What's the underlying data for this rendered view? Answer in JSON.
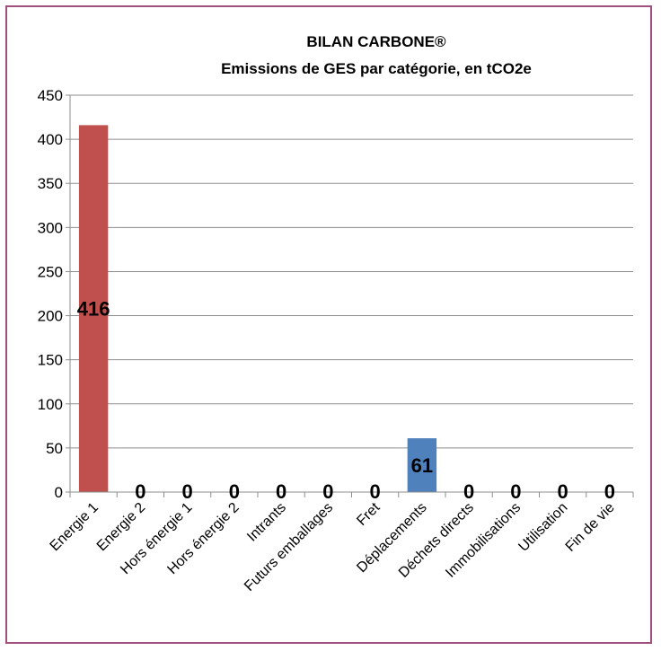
{
  "chart_data": {
    "type": "bar",
    "title_line1": "BILAN CARBONE®",
    "title_line2": "Emissions de GES par catégorie, en tCO2e",
    "xlabel": "",
    "ylabel": "",
    "ylim": [
      0,
      450
    ],
    "yticks": [
      "0",
      "50",
      "100",
      "150",
      "200",
      "250",
      "300",
      "350",
      "400",
      "450"
    ],
    "categories": [
      "Energie 1",
      "Energie 2",
      "Hors énergie 1",
      "Hors énergie 2",
      "Intrants",
      "Futurs emballages",
      "Fret",
      "Déplacements",
      "Déchets directs",
      "Immobilisations",
      "Utilisation",
      "Fin de vie"
    ],
    "values": [
      416,
      0,
      0,
      0,
      0,
      0,
      0,
      61,
      0,
      0,
      0,
      0
    ],
    "data_labels": [
      "416",
      "0",
      "0",
      "0",
      "0",
      "0",
      "0",
      "61",
      "0",
      "0",
      "0",
      "0"
    ],
    "bar_colors": [
      "#c0504d",
      "#4f81bd",
      "#4f81bd",
      "#4f81bd",
      "#4f81bd",
      "#4f81bd",
      "#4f81bd",
      "#4f81bd",
      "#4f81bd",
      "#4f81bd",
      "#4f81bd",
      "#4f81bd"
    ],
    "grid": true,
    "legend": "none"
  }
}
